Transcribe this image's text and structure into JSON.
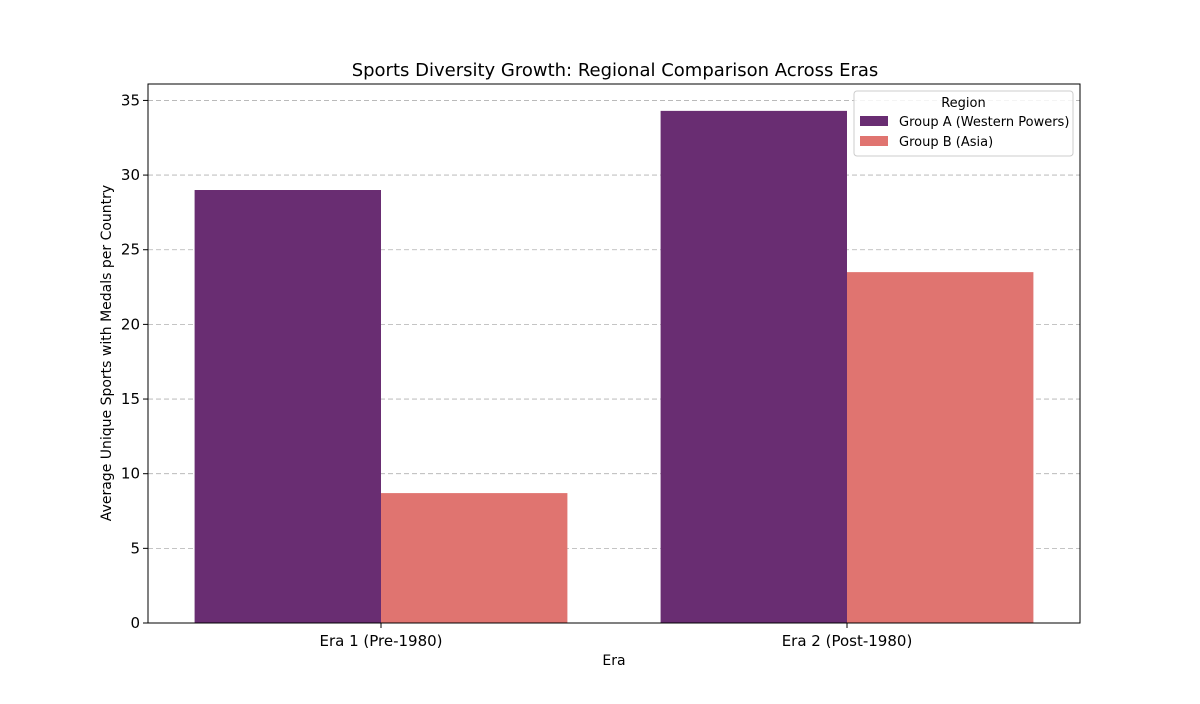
{
  "chart_data": {
    "type": "bar",
    "title": "Sports Diversity Growth: Regional Comparison Across Eras",
    "xlabel": "Era",
    "ylabel": "Average Unique Sports with Medals per Country",
    "categories": [
      "Era 1 (Pre-1980)",
      "Era 2 (Post-1980)"
    ],
    "series": [
      {
        "name": "Group A (Western Powers)",
        "color": "#692d72",
        "values": [
          29.0,
          34.3
        ]
      },
      {
        "name": "Group B (Asia)",
        "color": "#e07470",
        "values": [
          8.7,
          23.5
        ]
      }
    ],
    "ylim": [
      0,
      36.1
    ],
    "yticks": [
      0,
      5,
      10,
      15,
      20,
      25,
      30,
      35
    ],
    "grid": "y-dashed",
    "legend": {
      "title": "Region",
      "placement": "top-right"
    }
  }
}
